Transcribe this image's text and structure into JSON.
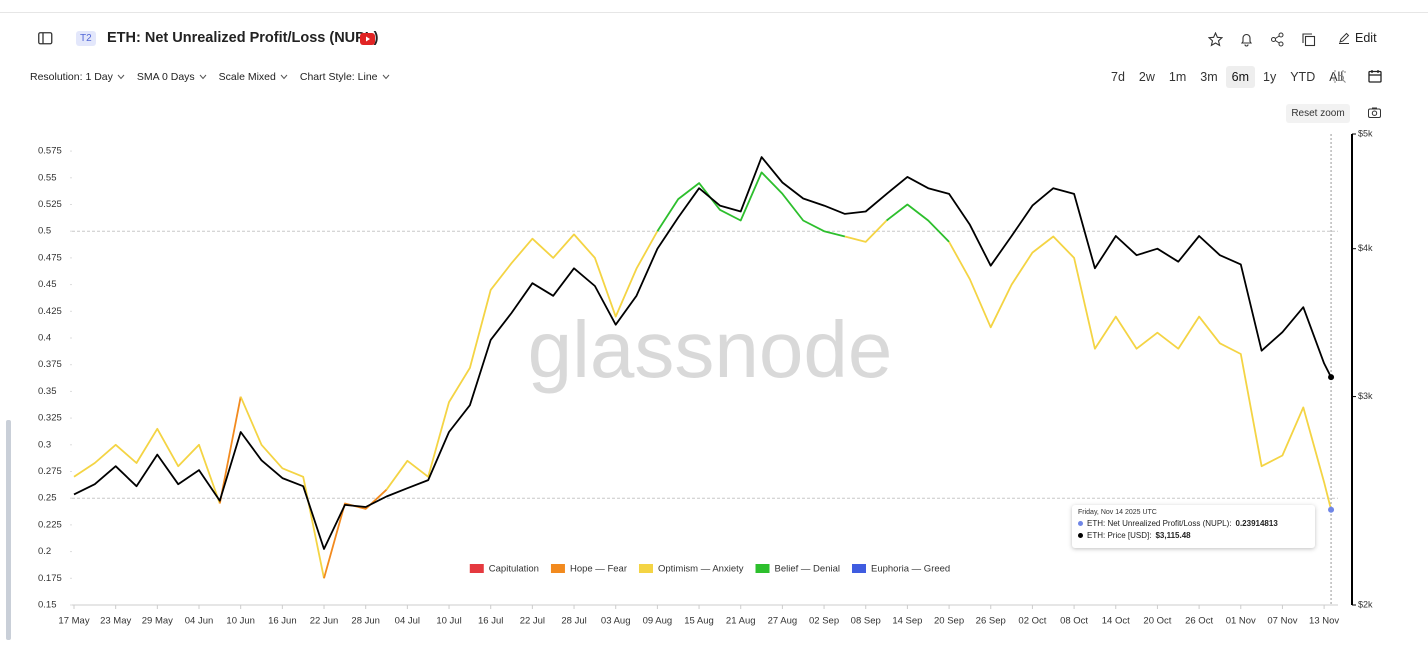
{
  "toolbar": {
    "badge": "T2",
    "title": "ETH: Net Unrealized Profit/Loss (NUPL)",
    "edit": "Edit",
    "controls": [
      "Resolution: 1 Day",
      "SMA 0 Days",
      "Scale Mixed",
      "Chart Style: Line"
    ],
    "ranges": [
      {
        "label": "7d",
        "active": false
      },
      {
        "label": "2w",
        "active": false
      },
      {
        "label": "1m",
        "active": false
      },
      {
        "label": "3m",
        "active": false
      },
      {
        "label": "6m",
        "active": true
      },
      {
        "label": "1y",
        "active": false
      },
      {
        "label": "YTD",
        "active": false
      },
      {
        "label": "All",
        "active": false
      }
    ],
    "reset_zoom": "Reset zoom"
  },
  "chart_data": {
    "type": "line",
    "watermark": "glassnode",
    "x": [
      "2025-05-17",
      "2025-05-20",
      "2025-05-23",
      "2025-05-26",
      "2025-05-29",
      "2025-06-01",
      "2025-06-04",
      "2025-06-07",
      "2025-06-10",
      "2025-06-13",
      "2025-06-16",
      "2025-06-19",
      "2025-06-22",
      "2025-06-25",
      "2025-06-28",
      "2025-07-01",
      "2025-07-04",
      "2025-07-07",
      "2025-07-10",
      "2025-07-13",
      "2025-07-16",
      "2025-07-19",
      "2025-07-22",
      "2025-07-25",
      "2025-07-28",
      "2025-07-31",
      "2025-08-03",
      "2025-08-06",
      "2025-08-09",
      "2025-08-12",
      "2025-08-15",
      "2025-08-18",
      "2025-08-21",
      "2025-08-24",
      "2025-08-27",
      "2025-08-30",
      "2025-09-02",
      "2025-09-05",
      "2025-09-08",
      "2025-09-11",
      "2025-09-14",
      "2025-09-17",
      "2025-09-20",
      "2025-09-23",
      "2025-09-26",
      "2025-09-29",
      "2025-10-02",
      "2025-10-05",
      "2025-10-08",
      "2025-10-11",
      "2025-10-14",
      "2025-10-17",
      "2025-10-20",
      "2025-10-23",
      "2025-10-26",
      "2025-10-29",
      "2025-11-01",
      "2025-11-04",
      "2025-11-07",
      "2025-11-10",
      "2025-11-13",
      "2025-11-14"
    ],
    "series": [
      {
        "marker_color": "#6f86e6",
        "values": [
          0.27,
          0.283,
          0.3,
          0.283,
          0.315,
          0.28,
          0.3,
          0.245,
          0.345,
          0.3,
          0.278,
          0.27,
          0.175,
          0.245,
          0.24,
          0.258,
          0.285,
          0.27,
          0.34,
          0.372,
          0.445,
          0.47,
          0.493,
          0.475,
          0.497,
          0.475,
          0.42,
          0.465,
          0.5,
          0.53,
          0.545,
          0.52,
          0.51,
          0.555,
          0.535,
          0.51,
          0.5,
          0.495,
          0.49,
          0.51,
          0.525,
          0.51,
          0.49,
          0.455,
          0.41,
          0.45,
          0.48,
          0.495,
          0.475,
          0.39,
          0.42,
          0.39,
          0.405,
          0.39,
          0.42,
          0.395,
          0.385,
          0.28,
          0.29,
          0.335,
          0.265,
          0.23914813
        ]
      },
      {
        "color": "#000000",
        "axis": "y2",
        "values": [
          2480,
          2530,
          2620,
          2520,
          2680,
          2530,
          2600,
          2450,
          2800,
          2650,
          2560,
          2520,
          2230,
          2430,
          2420,
          2470,
          2510,
          2550,
          2800,
          2950,
          3350,
          3530,
          3740,
          3650,
          3850,
          3720,
          3450,
          3650,
          4000,
          4250,
          4500,
          4350,
          4300,
          4780,
          4550,
          4410,
          4350,
          4280,
          4300,
          4450,
          4600,
          4500,
          4450,
          4190,
          3870,
          4100,
          4350,
          4500,
          4450,
          3850,
          4100,
          3950,
          4000,
          3900,
          4100,
          3950,
          3880,
          3280,
          3400,
          3570,
          3200,
          3115.48
        ]
      }
    ],
    "zones": [
      {
        "name": "Capitulation",
        "color": "#e5393f",
        "max": 0
      },
      {
        "name": "Hope — Fear",
        "color": "#f28a1e",
        "max": 0.25
      },
      {
        "name": "Optimism — Anxiety",
        "color": "#f4d444",
        "max": 0.5
      },
      {
        "name": "Belief — Denial",
        "color": "#2dbf2d",
        "max": 0.75
      },
      {
        "name": "Euphoria — Greed",
        "color": "#3f5ce0",
        "max": 1
      }
    ],
    "xlim": [
      "2025-05-17",
      "2025-11-15"
    ],
    "xticks": [
      {
        "value": "2025-05-17",
        "label": "17 May"
      },
      {
        "value": "2025-05-23",
        "label": "23 May"
      },
      {
        "value": "2025-05-29",
        "label": "29 May"
      },
      {
        "value": "2025-06-04",
        "label": "04 Jun"
      },
      {
        "value": "2025-06-10",
        "label": "10 Jun"
      },
      {
        "value": "2025-06-16",
        "label": "16 Jun"
      },
      {
        "value": "2025-06-22",
        "label": "22 Jun"
      },
      {
        "value": "2025-06-28",
        "label": "28 Jun"
      },
      {
        "value": "2025-07-04",
        "label": "04 Jul"
      },
      {
        "value": "2025-07-10",
        "label": "10 Jul"
      },
      {
        "value": "2025-07-16",
        "label": "16 Jul"
      },
      {
        "value": "2025-07-22",
        "label": "22 Jul"
      },
      {
        "value": "2025-07-28",
        "label": "28 Jul"
      },
      {
        "value": "2025-08-03",
        "label": "03 Aug"
      },
      {
        "value": "2025-08-09",
        "label": "09 Aug"
      },
      {
        "value": "2025-08-15",
        "label": "15 Aug"
      },
      {
        "value": "2025-08-21",
        "label": "21 Aug"
      },
      {
        "value": "2025-08-27",
        "label": "27 Aug"
      },
      {
        "value": "2025-09-02",
        "label": "02 Sep"
      },
      {
        "value": "2025-09-08",
        "label": "08 Sep"
      },
      {
        "value": "2025-09-14",
        "label": "14 Sep"
      },
      {
        "value": "2025-09-20",
        "label": "20 Sep"
      },
      {
        "value": "2025-09-26",
        "label": "26 Sep"
      },
      {
        "value": "2025-10-02",
        "label": "02 Oct"
      },
      {
        "value": "2025-10-08",
        "label": "08 Oct"
      },
      {
        "value": "2025-10-14",
        "label": "14 Oct"
      },
      {
        "value": "2025-10-20",
        "label": "20 Oct"
      },
      {
        "value": "2025-10-26",
        "label": "26 Oct"
      },
      {
        "value": "2025-11-01",
        "label": "01 Nov"
      },
      {
        "value": "2025-11-07",
        "label": "07 Nov"
      },
      {
        "value": "2025-11-13",
        "label": "13 Nov"
      }
    ],
    "ylim": [
      0.15,
      0.591
    ],
    "yticks": [
      0.15,
      0.175,
      0.2,
      0.225,
      0.25,
      0.275,
      0.3,
      0.325,
      0.35,
      0.375,
      0.4,
      0.425,
      0.45,
      0.475,
      0.5,
      0.525,
      0.55,
      0.575
    ],
    "y2scale": "log",
    "y2lim": [
      2000,
      5000
    ],
    "y2ticks": [
      {
        "value": 2000,
        "label": "$2k"
      },
      {
        "value": 3000,
        "label": "$3k"
      },
      {
        "value": 4000,
        "label": "$4k"
      },
      {
        "value": 5000,
        "label": "$5k"
      }
    ],
    "tooltip": {
      "date": "Friday, Nov 14 2025 UTC",
      "rows": [
        {
          "label": "ETH: Net Unrealized Profit/Loss (NUPL):"
        },
        {
          "label": "ETH: Price [USD]:",
          "value_label": "$3,115.48"
        }
      ]
    }
  }
}
